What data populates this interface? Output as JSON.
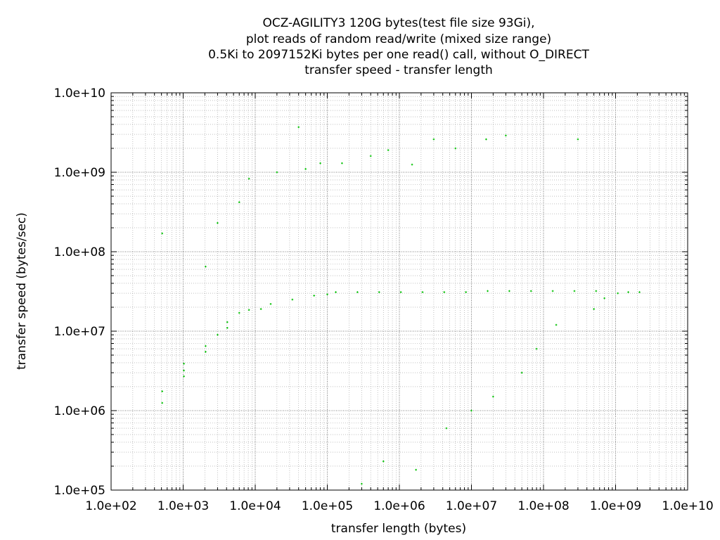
{
  "chart_data": {
    "type": "scatter",
    "title_lines": [
      "OCZ-AGILITY3 120G bytes(test file size 93Gi),",
      "plot reads of random read/write (mixed size range)",
      "0.5Ki to 2097152Ki bytes per one read() call, without O_DIRECT",
      "transfer speed - transfer length"
    ],
    "xlabel": "transfer length (bytes)",
    "ylabel": "transfer speed (bytes/sec)",
    "x_scale": "log",
    "y_scale": "log",
    "xlim": [
      100,
      10000000000
    ],
    "ylim": [
      100000,
      10000000000
    ],
    "x_ticks": [
      100,
      1000,
      10000,
      100000,
      1000000,
      10000000,
      100000000,
      1000000000,
      10000000000
    ],
    "x_tick_labels": [
      "1.0e+02",
      "1.0e+03",
      "1.0e+04",
      "1.0e+05",
      "1.0e+06",
      "1.0e+07",
      "1.0e+08",
      "1.0e+09",
      "1.0e+10"
    ],
    "y_ticks": [
      100000,
      1000000,
      10000000,
      100000000,
      1000000000,
      10000000000
    ],
    "y_tick_labels": [
      "1.0e+05",
      "1.0e+06",
      "1.0e+07",
      "1.0e+08",
      "1.0e+09",
      "1.0e+10"
    ],
    "grid": true,
    "marker_color": "#00c000",
    "series": [
      {
        "points": [
          [
            512,
            1750000
          ],
          [
            512,
            1250000
          ],
          [
            512,
            170000000
          ],
          [
            1024,
            3900000
          ],
          [
            1024,
            3200000
          ],
          [
            1024,
            2700000
          ],
          [
            2048,
            6500000
          ],
          [
            2048,
            5500000
          ],
          [
            2048,
            65000000
          ],
          [
            3000,
            9000000
          ],
          [
            3000,
            230000000
          ],
          [
            4096,
            11000000
          ],
          [
            4096,
            13000000
          ],
          [
            6000,
            17000000
          ],
          [
            6000,
            420000000
          ],
          [
            8192,
            18500000
          ],
          [
            8192,
            830000000
          ],
          [
            12000,
            19000000
          ],
          [
            16384,
            22000000
          ],
          [
            20000,
            1000000000
          ],
          [
            32768,
            25000000
          ],
          [
            40000,
            3700000000
          ],
          [
            50000,
            1100000000
          ],
          [
            65536,
            28000000
          ],
          [
            80000,
            1300000000
          ],
          [
            100000,
            29000000
          ],
          [
            131072,
            31000000
          ],
          [
            160000,
            1300000000
          ],
          [
            262144,
            31000000
          ],
          [
            300000,
            120000
          ],
          [
            400000,
            1600000000
          ],
          [
            524288,
            31000000
          ],
          [
            600000,
            230000
          ],
          [
            700000,
            1900000000
          ],
          [
            1048576,
            31000000
          ],
          [
            1500000,
            1250000000
          ],
          [
            1700000,
            180000
          ],
          [
            2097152,
            31000000
          ],
          [
            3000000,
            2600000000
          ],
          [
            4194304,
            31000000
          ],
          [
            4500000,
            600000
          ],
          [
            6000000,
            2000000000
          ],
          [
            8388608,
            31000000
          ],
          [
            10000000,
            1000000
          ],
          [
            16000000,
            2600000000
          ],
          [
            16777216,
            32000000
          ],
          [
            20000000,
            1500000
          ],
          [
            30000000,
            2900000000
          ],
          [
            33554432,
            32000000
          ],
          [
            50000000,
            3000000
          ],
          [
            67108864,
            32000000
          ],
          [
            80000000,
            6000000
          ],
          [
            134217728,
            32000000
          ],
          [
            150000000,
            12000000
          ],
          [
            268435456,
            32000000
          ],
          [
            300000000,
            2600000000
          ],
          [
            500000000,
            19000000
          ],
          [
            536870912,
            32000000
          ],
          [
            700000000,
            26000000
          ],
          [
            1073741824,
            30000000
          ],
          [
            1500000000,
            31000000
          ],
          [
            2147483648,
            31000000
          ]
        ]
      }
    ]
  }
}
